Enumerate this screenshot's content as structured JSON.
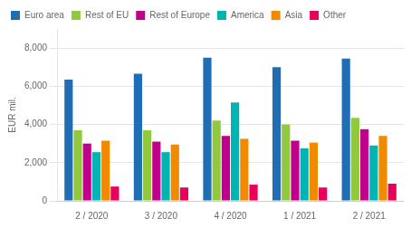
{
  "chart_data": {
    "type": "bar",
    "categories": [
      "2 / 2020",
      "3 / 2020",
      "4 / 2020",
      "1 / 2021",
      "2 / 2021"
    ],
    "series": [
      {
        "name": "Euro area",
        "color": "#1f6db5",
        "values": [
          6350,
          6650,
          7500,
          7000,
          7450
        ]
      },
      {
        "name": "Rest of EU",
        "color": "#92c83e",
        "values": [
          3700,
          3700,
          4200,
          4000,
          4350
        ]
      },
      {
        "name": "Rest of Europe",
        "color": "#c0008c",
        "values": [
          3000,
          3100,
          3400,
          3150,
          3750
        ]
      },
      {
        "name": "America",
        "color": "#00b4b4",
        "values": [
          2550,
          2550,
          5150,
          2750,
          2900
        ]
      },
      {
        "name": "Asia",
        "color": "#f28a00",
        "values": [
          3150,
          2950,
          3250,
          3050,
          3400
        ]
      },
      {
        "name": "Other",
        "color": "#e8005a",
        "values": [
          750,
          700,
          850,
          700,
          900
        ]
      }
    ],
    "ylabel": "EUR mil.",
    "ylim": [
      0,
      9000
    ],
    "yticks": [
      0,
      {
        "value": 2000,
        "label": "2,000"
      },
      {
        "value": 4000,
        "label": "4,000"
      },
      {
        "value": 6000,
        "label": "6,000"
      },
      {
        "value": 8000,
        "label": "8,000"
      }
    ],
    "grid": true,
    "legend": "top"
  }
}
